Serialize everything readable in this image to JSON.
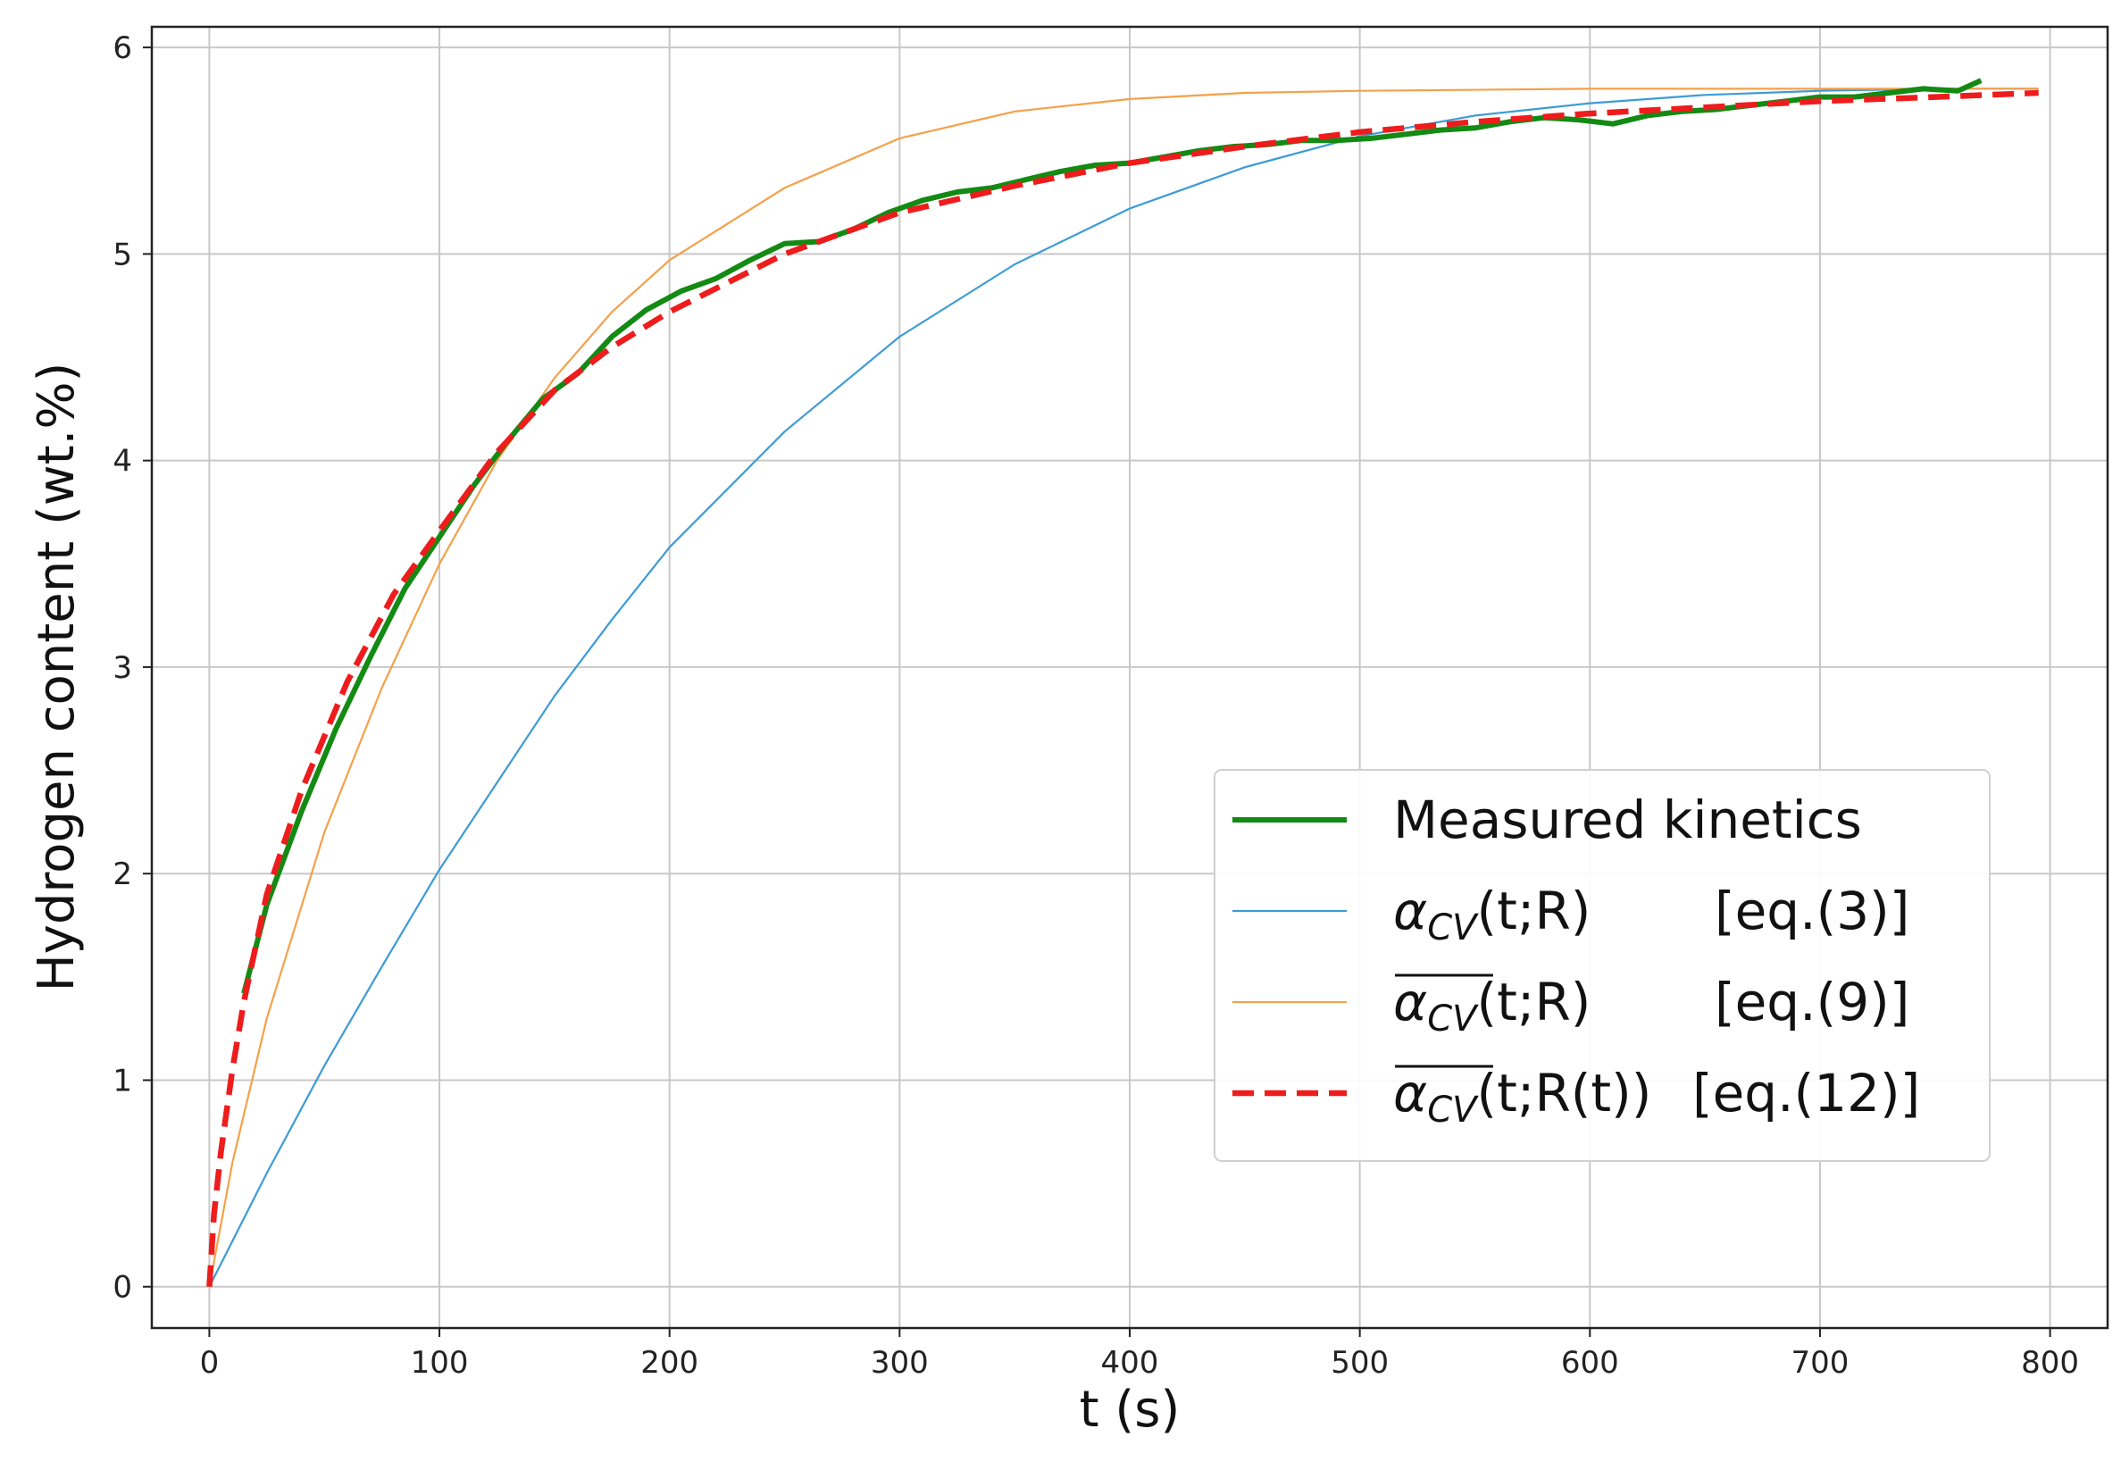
{
  "chart_data": {
    "type": "line",
    "title": "",
    "xlabel": "t (s)",
    "ylabel": "Hydrogen content (wt.%)",
    "xlim": [
      -25,
      825
    ],
    "ylim": [
      -0.2,
      6.1
    ],
    "xticks": [
      0,
      100,
      200,
      300,
      400,
      500,
      600,
      700,
      800
    ],
    "yticks": [
      0,
      1,
      2,
      3,
      4,
      5,
      6
    ],
    "grid": true,
    "legend_position": "center-right",
    "series": [
      {
        "name": "Measured kinetics",
        "color": "#138a13",
        "style": "solid-thick",
        "x": [
          15,
          25,
          40,
          55,
          70,
          85,
          100,
          115,
          130,
          145,
          160,
          175,
          190,
          205,
          220,
          235,
          250,
          265,
          280,
          295,
          310,
          325,
          340,
          355,
          370,
          385,
          400,
          415,
          430,
          445,
          460,
          475,
          490,
          505,
          520,
          535,
          550,
          565,
          580,
          595,
          610,
          625,
          640,
          655,
          670,
          685,
          700,
          715,
          730,
          745,
          760,
          770
        ],
        "y": [
          1.42,
          1.85,
          2.3,
          2.7,
          3.05,
          3.38,
          3.63,
          3.88,
          4.1,
          4.3,
          4.42,
          4.6,
          4.73,
          4.82,
          4.88,
          4.97,
          5.05,
          5.06,
          5.12,
          5.2,
          5.26,
          5.3,
          5.32,
          5.36,
          5.4,
          5.43,
          5.44,
          5.47,
          5.5,
          5.52,
          5.53,
          5.55,
          5.55,
          5.56,
          5.58,
          5.6,
          5.61,
          5.64,
          5.66,
          5.65,
          5.63,
          5.67,
          5.69,
          5.7,
          5.72,
          5.74,
          5.76,
          5.76,
          5.78,
          5.8,
          5.79,
          5.84
        ]
      },
      {
        "name": "α_CV(t;R) [eq.(3)]",
        "color": "#3d9bd6",
        "style": "solid-thin",
        "x": [
          0,
          25,
          50,
          75,
          100,
          125,
          150,
          175,
          200,
          250,
          300,
          350,
          400,
          450,
          500,
          550,
          600,
          650,
          700,
          750,
          795
        ],
        "y": [
          0.0,
          0.55,
          1.07,
          1.55,
          2.02,
          2.44,
          2.86,
          3.23,
          3.58,
          4.14,
          4.6,
          4.95,
          5.22,
          5.42,
          5.57,
          5.67,
          5.73,
          5.77,
          5.79,
          5.8,
          5.8
        ]
      },
      {
        "name": "α_CV(t;R) [eq.(9)]",
        "color": "#f5a04a",
        "style": "solid-thin",
        "x": [
          0,
          10,
          25,
          50,
          75,
          100,
          125,
          150,
          175,
          200,
          250,
          300,
          350,
          400,
          450,
          500,
          600,
          700,
          795
        ],
        "y": [
          0.0,
          0.6,
          1.3,
          2.2,
          2.9,
          3.5,
          4.0,
          4.4,
          4.72,
          4.97,
          5.32,
          5.56,
          5.69,
          5.75,
          5.78,
          5.79,
          5.8,
          5.8,
          5.8
        ]
      },
      {
        "name": "α_CV(t;R(t)) [eq.(12)]",
        "color": "#ee1c1c",
        "style": "dashed",
        "x": [
          0,
          2,
          5,
          10,
          15,
          25,
          40,
          60,
          80,
          100,
          125,
          150,
          175,
          200,
          250,
          300,
          350,
          400,
          450,
          500,
          550,
          600,
          650,
          700,
          750,
          795
        ],
        "y": [
          0.0,
          0.35,
          0.65,
          1.05,
          1.38,
          1.9,
          2.4,
          2.93,
          3.35,
          3.66,
          4.04,
          4.34,
          4.55,
          4.72,
          5.0,
          5.2,
          5.33,
          5.44,
          5.52,
          5.59,
          5.64,
          5.68,
          5.71,
          5.74,
          5.76,
          5.78
        ]
      }
    ]
  },
  "legend": {
    "items": [
      {
        "label": "Measured kinetics",
        "greek": "",
        "sub": "",
        "overline": false,
        "args": "",
        "eq": ""
      },
      {
        "label": "",
        "greek": "α",
        "sub": "CV",
        "overline": false,
        "args": "(t;R)",
        "eq": "[eq.(3)]"
      },
      {
        "label": "",
        "greek": "α",
        "sub": "CV",
        "overline": true,
        "args": "(t;R)",
        "eq": "[eq.(9)]"
      },
      {
        "label": "",
        "greek": "α",
        "sub": "CV",
        "overline": true,
        "args": "(t;R(t))",
        "eq": "[eq.(12)]"
      }
    ]
  }
}
